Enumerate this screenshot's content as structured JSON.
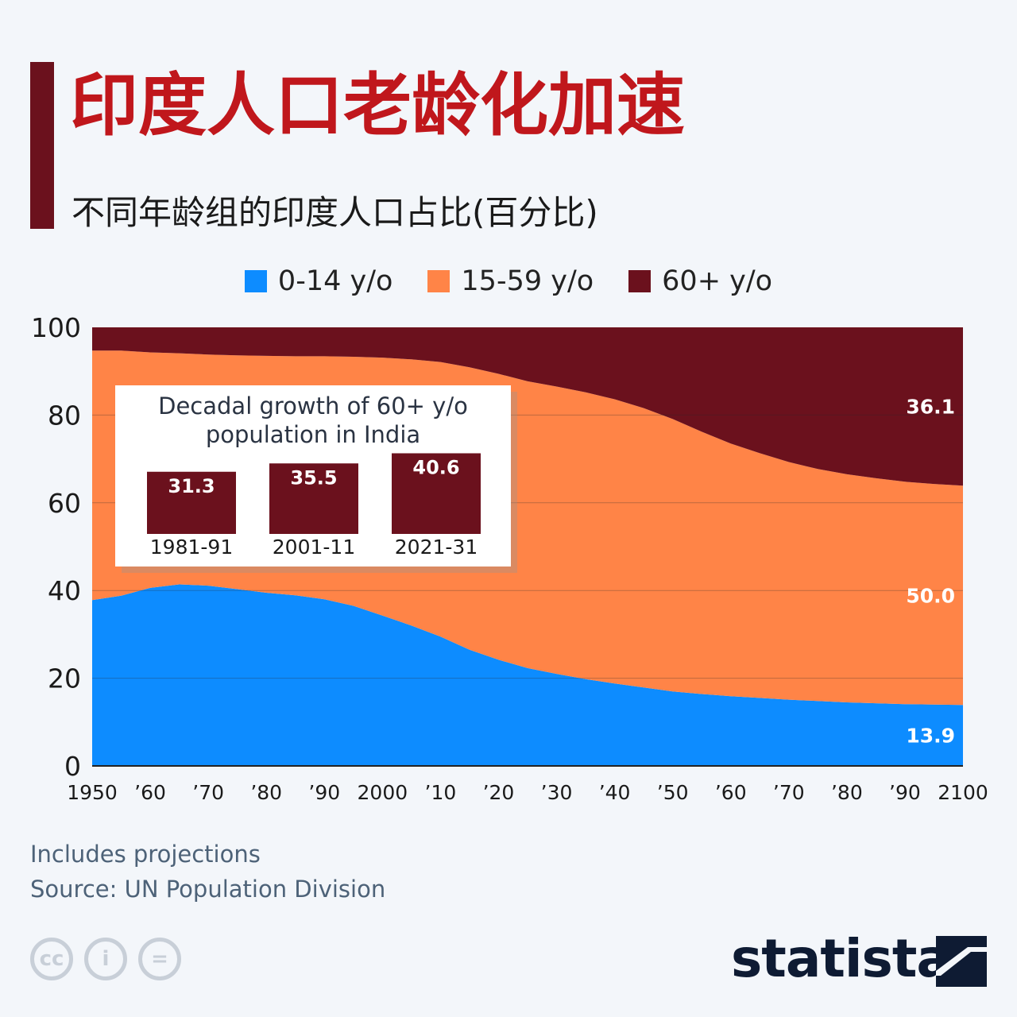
{
  "title": "印度人口老龄化加速",
  "subtitle": "不同年龄组的印度人口占比(百分比)",
  "legend": [
    {
      "label": "0-14 y/o",
      "color": "#0d8cff"
    },
    {
      "label": "15-59 y/o",
      "color": "#ff8447"
    },
    {
      "label": "60+ y/o",
      "color": "#6b111d"
    }
  ],
  "chart_data": {
    "type": "area",
    "stacked": true,
    "x": [
      1950,
      1955,
      1960,
      1965,
      1970,
      1975,
      1980,
      1985,
      1990,
      1995,
      2000,
      2005,
      2010,
      2015,
      2020,
      2025,
      2030,
      2035,
      2040,
      2045,
      2050,
      2055,
      2060,
      2065,
      2070,
      2075,
      2080,
      2085,
      2090,
      2095,
      2100
    ],
    "series": [
      {
        "name": "0-14 y/o",
        "color": "#0d8cff",
        "values": [
          37.8,
          38.8,
          40.6,
          41.4,
          41.1,
          40.3,
          39.5,
          38.9,
          38.0,
          36.5,
          34.3,
          32.0,
          29.5,
          26.5,
          24.2,
          22.3,
          21.0,
          19.8,
          18.8,
          17.9,
          17.0,
          16.4,
          15.9,
          15.5,
          15.1,
          14.8,
          14.5,
          14.3,
          14.1,
          14.0,
          13.9
        ]
      },
      {
        "name": "15-59 y/o",
        "color": "#ff8447",
        "values": [
          56.9,
          55.9,
          53.7,
          52.7,
          52.7,
          53.3,
          54.0,
          54.5,
          55.4,
          56.8,
          58.8,
          60.7,
          62.6,
          64.4,
          65.2,
          65.4,
          65.5,
          65.4,
          64.8,
          63.7,
          62.1,
          59.8,
          57.6,
          55.8,
          54.2,
          52.9,
          52.0,
          51.3,
          50.7,
          50.3,
          50.0
        ]
      },
      {
        "name": "60+ y/o",
        "color": "#6b111d",
        "values": [
          5.3,
          5.3,
          5.7,
          5.9,
          6.2,
          6.4,
          6.5,
          6.6,
          6.6,
          6.7,
          6.9,
          7.3,
          7.9,
          9.1,
          10.6,
          12.3,
          13.5,
          14.8,
          16.4,
          18.4,
          20.9,
          23.8,
          26.5,
          28.7,
          30.7,
          32.3,
          33.5,
          34.4,
          35.2,
          35.7,
          36.1
        ]
      }
    ],
    "end_labels": [
      "13.9",
      "50.0",
      "36.1"
    ],
    "y_ticks": [
      "0",
      "20",
      "40",
      "60",
      "80",
      "100"
    ],
    "x_tick_labels": [
      "1950",
      "’60",
      "’70",
      "’80",
      "’90",
      "2000",
      "’10",
      "’20",
      "’30",
      "’40",
      "’50",
      "’60",
      "’70",
      "’80",
      "’90",
      "2100"
    ],
    "ylim": [
      0,
      100
    ],
    "grid": true,
    "inset": {
      "type": "bar",
      "title": "Decadal growth of 60+ y/o population in India",
      "categories": [
        "1981-91",
        "2001-11",
        "2021-31"
      ],
      "values": [
        31.3,
        35.5,
        40.6
      ],
      "labels": [
        "31.3",
        "35.5",
        "40.6"
      ],
      "color": "#6b111d"
    }
  },
  "notes": {
    "projections": "Includes projections",
    "source": "Source: UN Population Division"
  },
  "footer": {
    "cc_icons": [
      "cc-icon",
      "attribution-icon",
      "no-derivatives-icon"
    ],
    "cc_glyphs": [
      "cc",
      "i",
      "="
    ],
    "brand": "statista"
  }
}
